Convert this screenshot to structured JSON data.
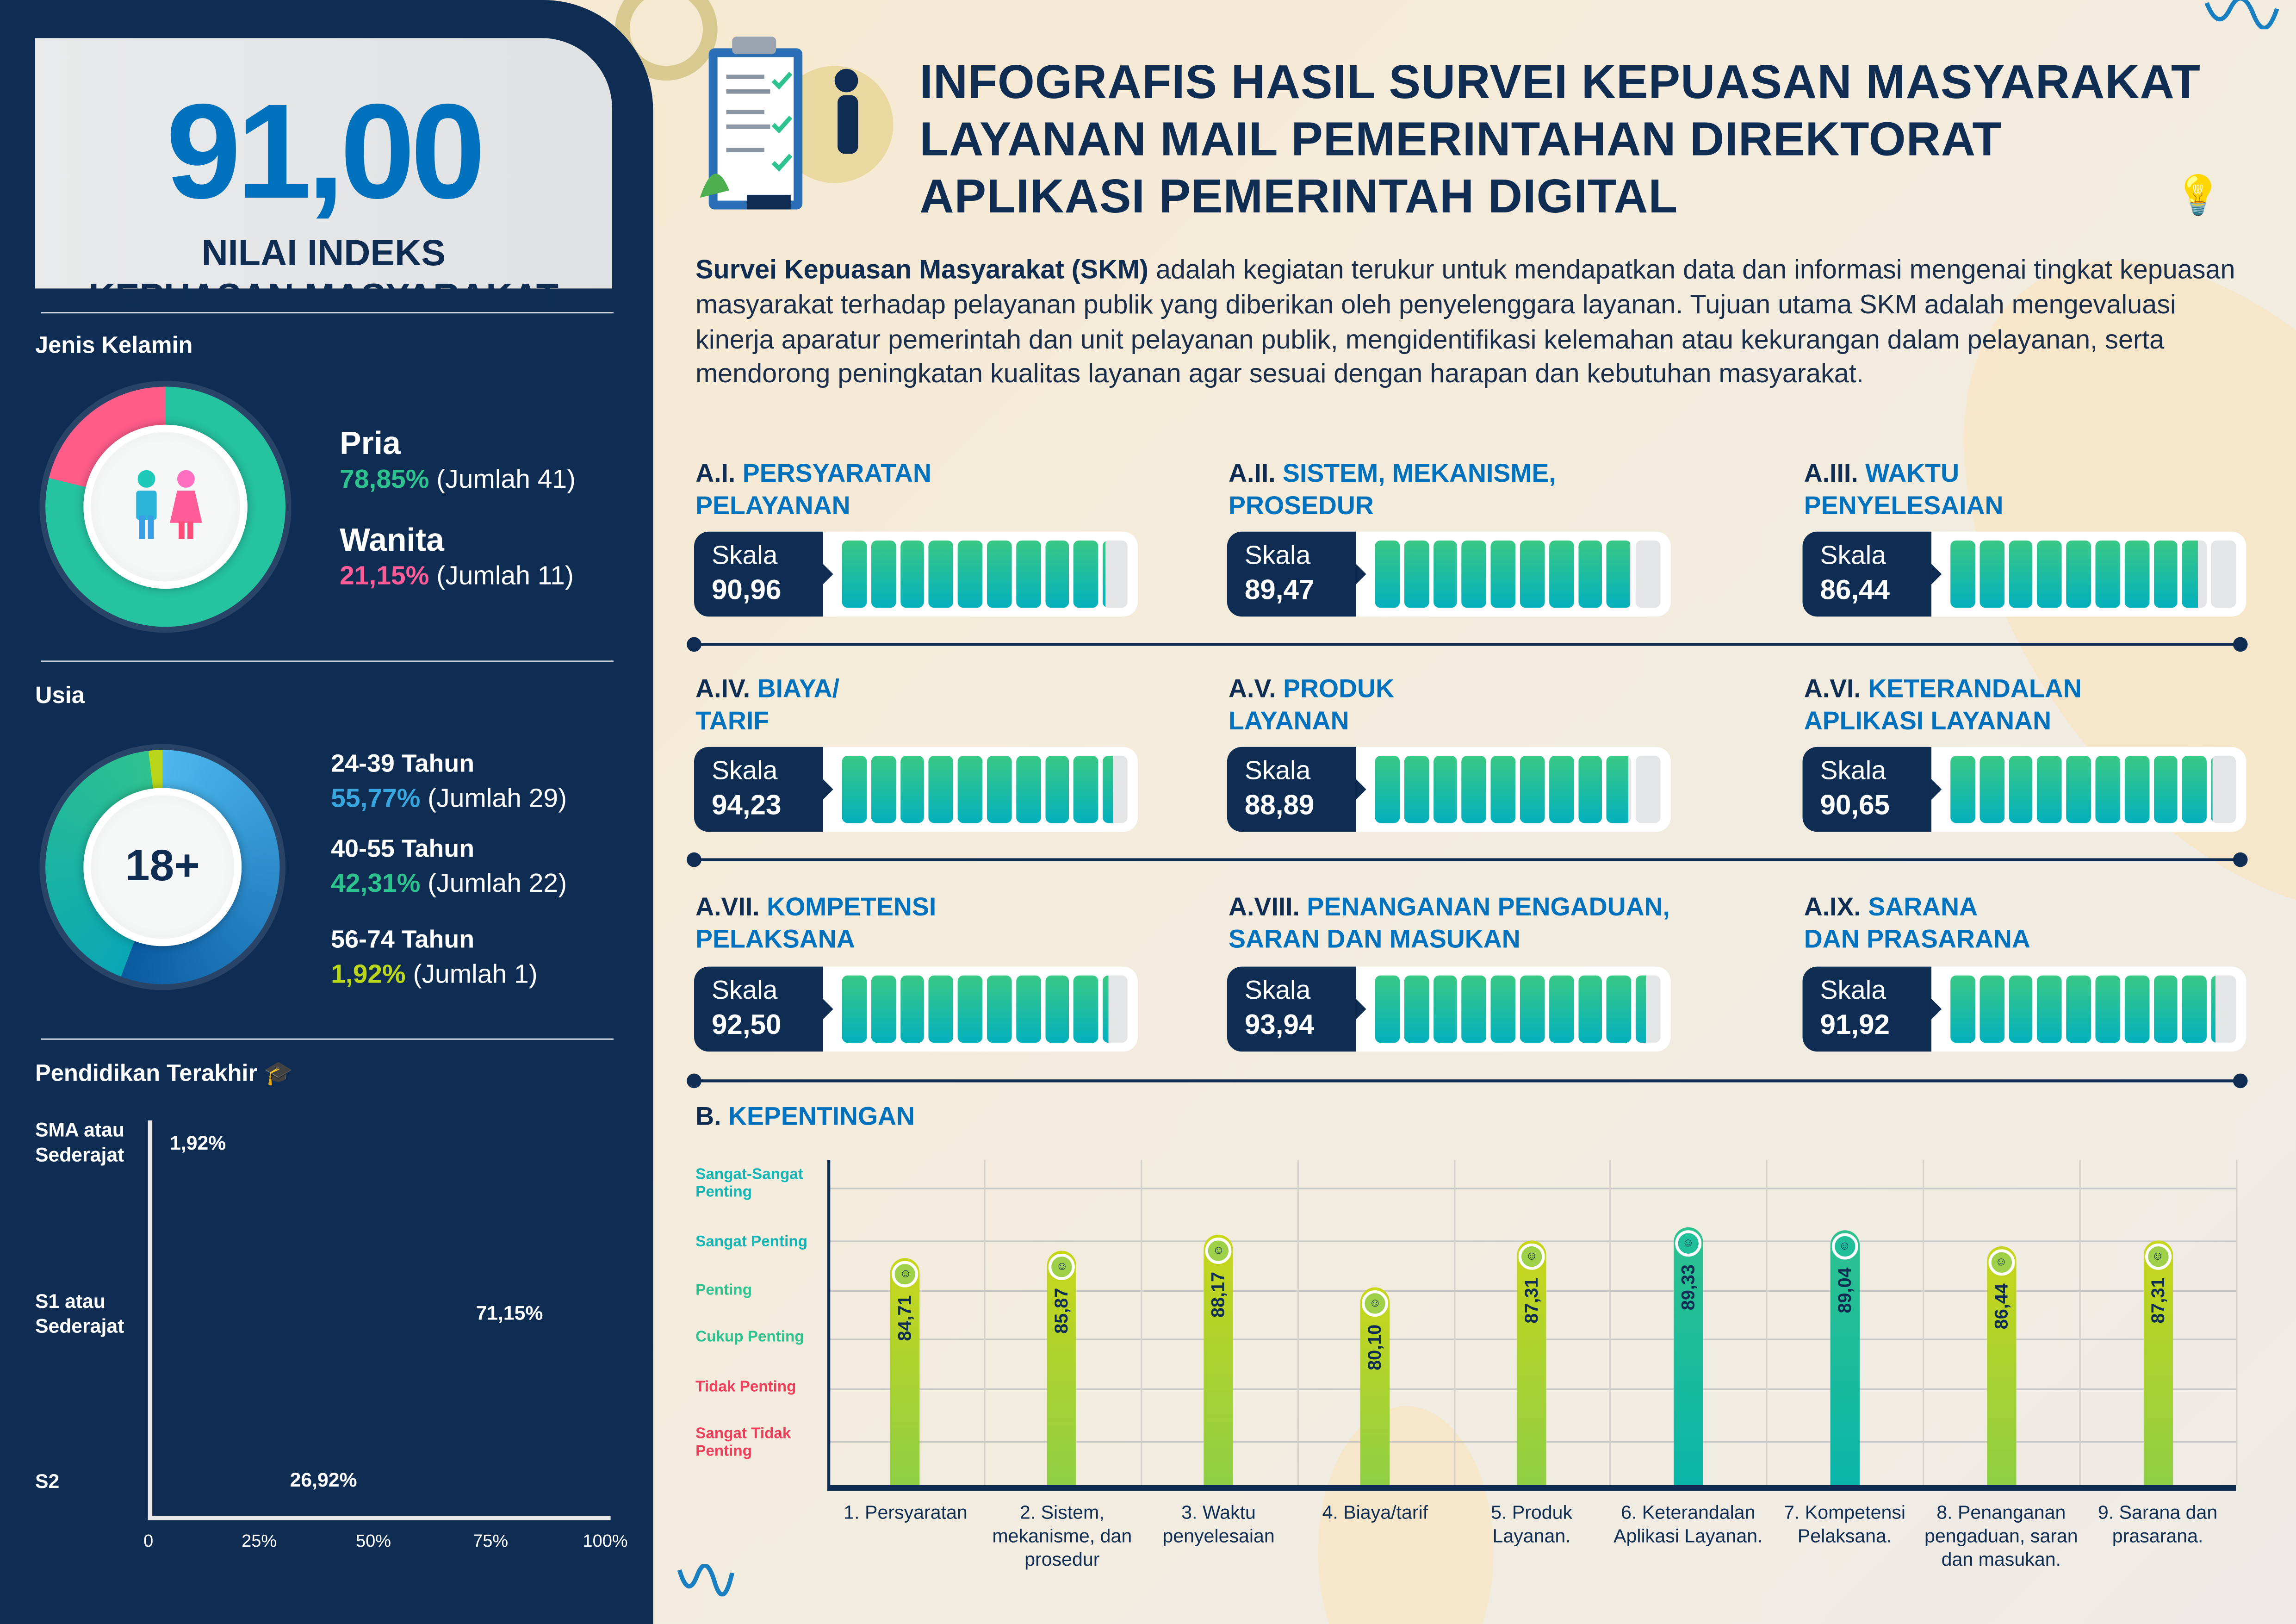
{
  "score": {
    "value": "91,00",
    "label_line1": "NILAI INDEKS",
    "label_line2": "KEPUASAN MASYARAKAT"
  },
  "gender": {
    "title": "Jenis Kelamin",
    "items": [
      {
        "label": "Pria",
        "percent": "78,85%",
        "count": "(Jumlah 41)",
        "value": 78.85,
        "color": "#2ec28e"
      },
      {
        "label": "Wanita",
        "percent": "21,15%",
        "count": "(Jumlah 11)",
        "value": 21.15,
        "color": "#ff5c98"
      }
    ]
  },
  "age": {
    "title": "Usia",
    "center": "18+",
    "items": [
      {
        "label": "24-39 Tahun",
        "percent": "55,77%",
        "count": "(Jumlah 29)",
        "value": 55.77,
        "color": "#3aa6e0"
      },
      {
        "label": "40-55 Tahun",
        "percent": "42,31%",
        "count": "(Jumlah 22)",
        "value": 42.31,
        "color": "#2ec28e"
      },
      {
        "label": "56-74 Tahun",
        "percent": "1,92%",
        "count": "(Jumlah 1)",
        "value": 1.92,
        "color": "#b9d61b"
      }
    ]
  },
  "education": {
    "title": "Pendidikan Terakhir",
    "ticks": [
      "0",
      "25%",
      "50%",
      "75%",
      "100%"
    ],
    "items": [
      {
        "label_line1": "SMA atau",
        "label_line2": "Sederajat",
        "percent": "1,92%",
        "value": 1.92
      },
      {
        "label_line1": "S1 atau",
        "label_line2": "Sederajat",
        "percent": "71,15%",
        "value": 71.15
      },
      {
        "label_line1": "S2",
        "label_line2": "",
        "percent": "26,92%",
        "value": 26.92
      }
    ]
  },
  "header": {
    "title_line1": "INFOGRAFIS HASIL SURVEI KEPUASAN MASYARAKAT",
    "title_line2": "LAYANAN MAIL PEMERINTAHAN DIREKTORAT",
    "title_line3": "APLIKASI PEMERINTAH DIGITAL"
  },
  "intro": {
    "bold": "Survei Kepuasan Masyarakat (SKM)",
    "text": " adalah kegiatan terukur untuk mendapatkan data dan informasi mengenai tingkat kepuasan masyarakat terhadap pelayanan publik yang diberikan oleh penyelenggara layanan. Tujuan utama SKM adalah mengevaluasi kinerja aparatur pemerintah dan unit pelayanan publik, mengidentifikasi kelemahan atau kekurangan dalam pelayanan, serta mendorong peningkatan kualitas layanan agar sesuai dengan harapan dan kebutuhan masyarakat."
  },
  "scale_label": "Skala",
  "indicators": [
    {
      "code": "A.I.",
      "line1": "PERSYARATAN",
      "line2": "PELAYANAN",
      "score": "90,96",
      "value": 90.96
    },
    {
      "code": "A.II.",
      "line1": "SISTEM, MEKANISME,",
      "line2": "PROSEDUR",
      "score": "89,47",
      "value": 89.47
    },
    {
      "code": "A.III.",
      "line1": "WAKTU",
      "line2": "PENYELESAIAN",
      "score": "86,44",
      "value": 86.44
    },
    {
      "code": "A.IV.",
      "line1": "BIAYA/",
      "line2": "TARIF",
      "score": "94,23",
      "value": 94.23
    },
    {
      "code": "A.V.",
      "line1": "PRODUK",
      "line2": "LAYANAN",
      "score": "88,89",
      "value": 88.89
    },
    {
      "code": "A.VI.",
      "line1": "KETERANDALAN",
      "line2": "APLIKASI LAYANAN",
      "score": "90,65",
      "value": 90.65
    },
    {
      "code": "A.VII.",
      "line1": "KOMPETENSI",
      "line2": "PELAKSANA",
      "score": "92,50",
      "value": 92.5
    },
    {
      "code": "A.VIII.",
      "line1": "PENANGANAN PENGADUAN,",
      "line2": "SARAN DAN MASUKAN",
      "score": "93,94",
      "value": 93.94
    },
    {
      "code": "A.IX.",
      "line1": "SARANA",
      "line2": "DAN PRASARANA",
      "score": "91,92",
      "value": 91.92
    }
  ],
  "importance": {
    "code": "B.",
    "title": "KEPENTINGAN",
    "levels": [
      {
        "label": "Sangat-Sangat Penting",
        "color": "#13b5b5"
      },
      {
        "label": "Sangat Penting",
        "color": "#13b5b5"
      },
      {
        "label": "Penting",
        "color": "#2ec28e"
      },
      {
        "label": "Cukup Penting",
        "color": "#2ec28e"
      },
      {
        "label": "Tidak Penting",
        "color": "#ef3e5c"
      },
      {
        "label": "Sangat Tidak Penting",
        "color": "#ef3e5c"
      }
    ]
  },
  "chart_data": {
    "type": "bar",
    "title": "B. KEPENTINGAN",
    "xlabel": "",
    "ylabel": "",
    "ylim": [
      49,
      100
    ],
    "categories": [
      "1. Persyaratan",
      "2. Sistem, mekanisme, dan prosedur",
      "3. Waktu penyelesaian",
      "4. Biaya/tarif",
      "5. Produk Layanan.",
      "6. Keterandalan Aplikasi Layanan.",
      "7. Kompetensi Pelaksana.",
      "8. Penanganan pengaduan, saran dan masukan.",
      "9. Sarana dan prasarana."
    ],
    "values": [
      84.71,
      85.87,
      88.17,
      80.1,
      87.31,
      89.33,
      89.04,
      86.44,
      87.31
    ],
    "value_labels": [
      "84,71",
      "85,87",
      "88,17",
      "80,10",
      "87,31",
      "89,33",
      "89,04",
      "86,44",
      "87,31"
    ],
    "colors": {
      "lime": "#b5d62a",
      "teal": "#1fbf9a"
    }
  }
}
